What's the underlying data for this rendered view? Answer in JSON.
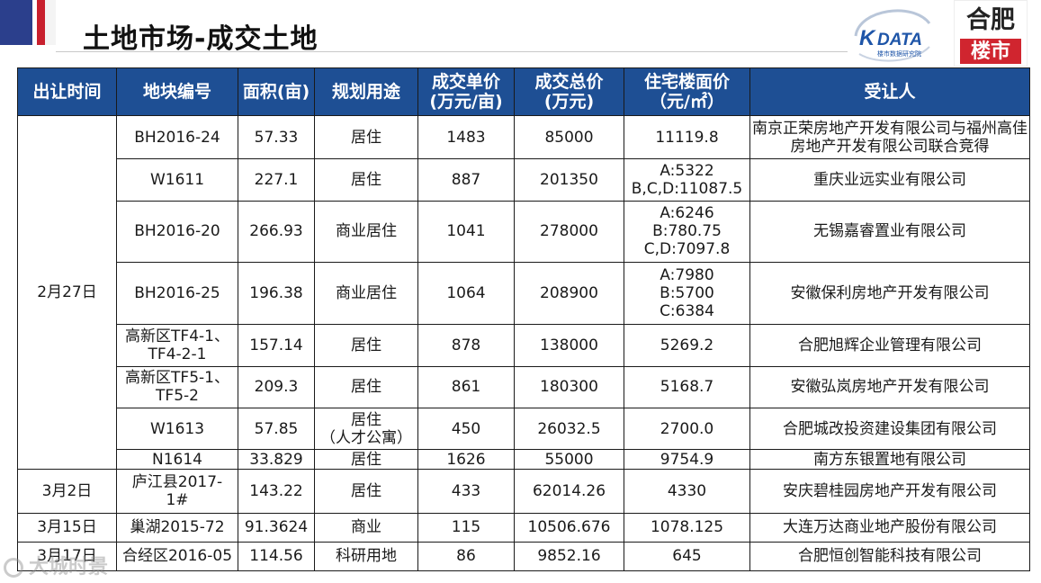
{
  "page": {
    "title": "土地市场-成交土地"
  },
  "logos": {
    "kdata": {
      "mark": "K",
      "name": "DATA",
      "subtitle": "楼市数据研究院",
      "color": "#1e55a8"
    },
    "hefei": {
      "top": "合肥",
      "bottom": "楼市",
      "accent": "#d0252f"
    }
  },
  "watermark": "大城时景",
  "table": {
    "headers": [
      "出让时间",
      "地块编号",
      "面积(亩)",
      "规划用途",
      "成交单价\n(万元/亩)",
      "成交总价\n(万元)",
      "住宅楼面价\n（元/㎡）",
      "受让人"
    ],
    "rows": [
      {
        "date": "2月27日",
        "plot": "BH2016-24",
        "area": "57.33",
        "use": "居住",
        "unit_price": "1483",
        "total_price": "85000",
        "floor_price": "11119.8",
        "buyer": "南京正荣房地产开发有限公司与福州高佳房地产开发有限公司联合竞得"
      },
      {
        "date": "",
        "plot": "W1611",
        "area": "227.1",
        "use": "居住",
        "unit_price": "887",
        "total_price": "201350",
        "floor_price": "A:5322\nB,C,D:11087.5",
        "buyer": "重庆业远实业有限公司"
      },
      {
        "date": "",
        "plot": "BH2016-20",
        "area": "266.93",
        "use": "商业居住",
        "unit_price": "1041",
        "total_price": "278000",
        "floor_price": "A:6246\nB:780.75\nC,D:7097.8",
        "buyer": "无锡嘉睿置业有限公司"
      },
      {
        "date": "",
        "plot": "BH2016-25",
        "area": "196.38",
        "use": "商业居住",
        "unit_price": "1064",
        "total_price": "208900",
        "floor_price": "A:7980\nB:5700\nC:6384",
        "buyer": "安徽保利房地产开发有限公司"
      },
      {
        "date": "",
        "plot": "高新区TF4-1、\nTF4-2-1",
        "area": "157.14",
        "use": "居住",
        "unit_price": "878",
        "total_price": "138000",
        "floor_price": "5269.2",
        "buyer": "合肥旭辉企业管理有限公司"
      },
      {
        "date": "",
        "plot": "高新区TF5-1、\nTF5-2",
        "area": "209.3",
        "use": "居住",
        "unit_price": "861",
        "total_price": "180300",
        "floor_price": "5168.7",
        "buyer": "安徽弘岚房地产开发有限公司"
      },
      {
        "date": "",
        "plot": "W1613",
        "area": "57.85",
        "use": "居住\n（人才公寓）",
        "unit_price": "450",
        "total_price": "26032.5",
        "floor_price": "2700.0",
        "buyer": "合肥城改投资建设集团有限公司"
      },
      {
        "date": "",
        "plot": "N1614",
        "area": "33.829",
        "use": "居住",
        "unit_price": "1626",
        "total_price": "55000",
        "floor_price": "9754.9",
        "buyer": "南方东银置地有限公司"
      },
      {
        "date": "3月2日",
        "plot": "庐江县2017-\n1#",
        "area": "143.22",
        "use": "居住",
        "unit_price": "433",
        "total_price": "62014.26",
        "floor_price": "4330",
        "buyer": "安庆碧桂园房地产开发有限公司"
      },
      {
        "date": "3月15日",
        "plot": "巢湖2015-72",
        "area": "91.3624",
        "use": "商业",
        "unit_price": "115",
        "total_price": "10506.676",
        "floor_price": "1078.125",
        "buyer": "大连万达商业地产股份有限公司"
      },
      {
        "date": "3月17日",
        "plot": "合经区2016-05",
        "area": "114.56",
        "use": "科研用地",
        "unit_price": "86",
        "total_price": "9852.16",
        "floor_price": "645",
        "buyer": "合肥恒创智能科技有限公司"
      }
    ]
  }
}
